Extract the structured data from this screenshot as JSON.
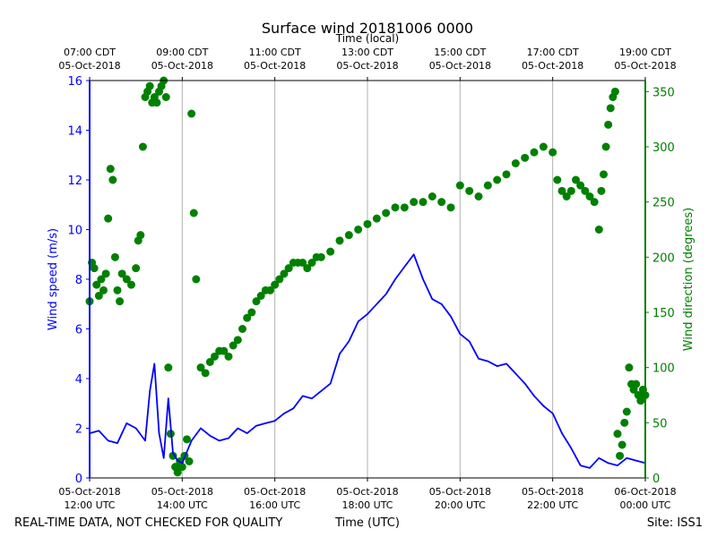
{
  "chart_data": {
    "type": "line",
    "title": "Surface wind 20181006 0000",
    "xlabel_bottom": "Time (UTC)",
    "xlabel_top": "Time (local)",
    "ylabel_left": "Wind speed (m/s)",
    "ylabel_right": "Wind direction (degrees)",
    "footer_left": "REAL-TIME DATA, NOT CHECKED FOR QUALITY",
    "footer_right": "Site: ISS1",
    "x_range_hours": [
      0,
      12
    ],
    "y_left_range": [
      0,
      16
    ],
    "y_right_range": [
      0,
      360
    ],
    "bottom_ticks": [
      {
        "hour": 0,
        "line1": "05-Oct-2018",
        "line2": "12:00 UTC"
      },
      {
        "hour": 2,
        "line1": "05-Oct-2018",
        "line2": "14:00 UTC"
      },
      {
        "hour": 4,
        "line1": "05-Oct-2018",
        "line2": "16:00 UTC"
      },
      {
        "hour": 6,
        "line1": "05-Oct-2018",
        "line2": "18:00 UTC"
      },
      {
        "hour": 8,
        "line1": "05-Oct-2018",
        "line2": "20:00 UTC"
      },
      {
        "hour": 10,
        "line1": "05-Oct-2018",
        "line2": "22:00 UTC"
      },
      {
        "hour": 12,
        "line1": "06-Oct-2018",
        "line2": "00:00 UTC"
      }
    ],
    "top_ticks": [
      {
        "hour": 0,
        "line1": "07:00 CDT",
        "line2": "05-Oct-2018"
      },
      {
        "hour": 2,
        "line1": "09:00 CDT",
        "line2": "05-Oct-2018"
      },
      {
        "hour": 4,
        "line1": "11:00 CDT",
        "line2": "05-Oct-2018"
      },
      {
        "hour": 6,
        "line1": "13:00 CDT",
        "line2": "05-Oct-2018"
      },
      {
        "hour": 8,
        "line1": "15:00 CDT",
        "line2": "05-Oct-2018"
      },
      {
        "hour": 10,
        "line1": "17:00 CDT",
        "line2": "05-Oct-2018"
      },
      {
        "hour": 12,
        "line1": "19:00 CDT",
        "line2": "05-Oct-2018"
      }
    ],
    "left_ticks": [
      0,
      2,
      4,
      6,
      8,
      10,
      12,
      14,
      16
    ],
    "right_ticks": [
      0,
      50,
      100,
      150,
      200,
      250,
      300,
      350
    ],
    "colors": {
      "speed": "#0000ff",
      "direction": "#008000",
      "grid": "#b0b0b0",
      "axis": "#000000"
    },
    "series": [
      {
        "name": "Wind speed (m/s)",
        "axis": "left",
        "style": "line",
        "x": [
          0.0,
          0.2,
          0.4,
          0.6,
          0.8,
          1.0,
          1.2,
          1.3,
          1.4,
          1.5,
          1.6,
          1.7,
          1.8,
          1.9,
          2.0,
          2.2,
          2.4,
          2.6,
          2.8,
          3.0,
          3.2,
          3.4,
          3.6,
          3.8,
          4.0,
          4.2,
          4.4,
          4.6,
          4.8,
          5.0,
          5.2,
          5.4,
          5.6,
          5.8,
          6.0,
          6.2,
          6.4,
          6.6,
          6.8,
          7.0,
          7.2,
          7.4,
          7.6,
          7.8,
          8.0,
          8.2,
          8.4,
          8.6,
          8.8,
          9.0,
          9.2,
          9.4,
          9.6,
          9.8,
          10.0,
          10.2,
          10.4,
          10.6,
          10.8,
          11.0,
          11.2,
          11.4,
          11.6,
          11.8,
          12.0
        ],
        "values": [
          1.8,
          1.9,
          1.5,
          1.4,
          2.2,
          2.0,
          1.5,
          3.5,
          4.6,
          1.8,
          0.8,
          3.2,
          1.0,
          0.7,
          0.6,
          1.5,
          2.0,
          1.7,
          1.5,
          1.6,
          2.0,
          1.8,
          2.1,
          2.2,
          2.3,
          2.6,
          2.8,
          3.3,
          3.2,
          3.5,
          3.8,
          5.0,
          5.5,
          6.3,
          6.6,
          7.0,
          7.4,
          8.0,
          8.5,
          9.0,
          8.0,
          7.2,
          7.0,
          6.5,
          5.8,
          5.5,
          4.8,
          4.7,
          4.5,
          4.6,
          4.2,
          3.8,
          3.3,
          2.9,
          2.6,
          1.8,
          1.2,
          0.5,
          0.4,
          0.8,
          0.6,
          0.5,
          0.8,
          0.7,
          0.6
        ]
      },
      {
        "name": "Wind direction (degrees)",
        "axis": "right",
        "style": "scatter",
        "x": [
          0.0,
          0.05,
          0.1,
          0.15,
          0.2,
          0.25,
          0.3,
          0.35,
          0.4,
          0.45,
          0.5,
          0.55,
          0.6,
          0.65,
          0.7,
          0.8,
          0.9,
          1.0,
          1.05,
          1.1,
          1.15,
          1.2,
          1.25,
          1.3,
          1.35,
          1.4,
          1.45,
          1.5,
          1.55,
          1.6,
          1.65,
          1.7,
          1.75,
          1.8,
          1.85,
          1.9,
          1.95,
          2.0,
          2.05,
          2.1,
          2.15,
          2.2,
          2.25,
          2.3,
          2.4,
          2.5,
          2.6,
          2.7,
          2.8,
          2.9,
          3.0,
          3.1,
          3.2,
          3.3,
          3.4,
          3.5,
          3.6,
          3.7,
          3.8,
          3.9,
          4.0,
          4.1,
          4.2,
          4.3,
          4.4,
          4.5,
          4.6,
          4.7,
          4.8,
          4.9,
          5.0,
          5.2,
          5.4,
          5.6,
          5.8,
          6.0,
          6.2,
          6.4,
          6.6,
          6.8,
          7.0,
          7.2,
          7.4,
          7.6,
          7.8,
          8.0,
          8.2,
          8.4,
          8.6,
          8.8,
          9.0,
          9.2,
          9.4,
          9.6,
          9.8,
          10.0,
          10.1,
          10.2,
          10.3,
          10.4,
          10.5,
          10.6,
          10.7,
          10.8,
          10.9,
          11.0,
          11.05,
          11.1,
          11.15,
          11.2,
          11.25,
          11.3,
          11.35,
          11.4,
          11.45,
          11.5,
          11.55,
          11.6,
          11.65,
          11.7,
          11.75,
          11.8,
          11.85,
          11.9,
          11.95,
          12.0
        ],
        "values": [
          160,
          195,
          190,
          175,
          165,
          180,
          170,
          185,
          235,
          280,
          270,
          200,
          170,
          160,
          185,
          180,
          175,
          190,
          215,
          220,
          300,
          345,
          350,
          355,
          340,
          345,
          340,
          350,
          355,
          360,
          345,
          100,
          40,
          20,
          10,
          5,
          15,
          10,
          20,
          35,
          15,
          330,
          240,
          180,
          100,
          95,
          105,
          110,
          115,
          115,
          110,
          120,
          125,
          135,
          145,
          150,
          160,
          165,
          170,
          170,
          175,
          180,
          185,
          190,
          195,
          195,
          195,
          190,
          195,
          200,
          200,
          205,
          215,
          220,
          225,
          230,
          235,
          240,
          245,
          245,
          250,
          250,
          255,
          250,
          245,
          265,
          260,
          255,
          265,
          270,
          275,
          285,
          290,
          295,
          300,
          295,
          270,
          260,
          255,
          260,
          270,
          265,
          260,
          255,
          250,
          225,
          260,
          275,
          300,
          320,
          335,
          345,
          350,
          40,
          20,
          30,
          50,
          60,
          100,
          85,
          80,
          85,
          75,
          70,
          80,
          75
        ]
      }
    ]
  }
}
